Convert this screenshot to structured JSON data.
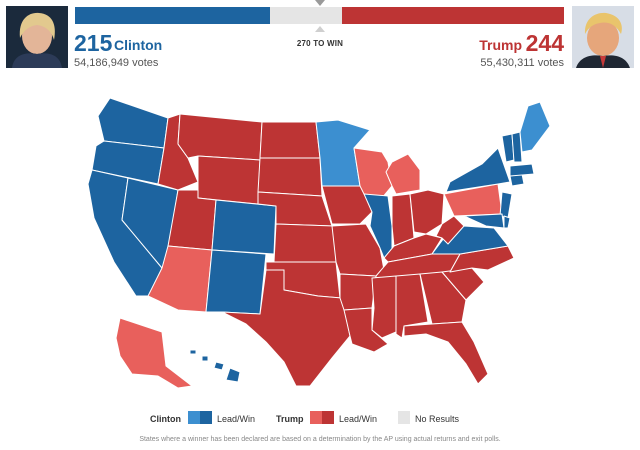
{
  "header": {
    "threshold_label": "270 TO WIN",
    "clinton": {
      "ev": "215",
      "name": "Clinton",
      "votes": "54,186,949 votes",
      "photo_icon": "candidate-photo-clinton"
    },
    "trump": {
      "ev": "244",
      "name": "Trump",
      "votes": "55,430,311 votes",
      "photo_icon": "candidate-photo-trump"
    },
    "bar": {
      "total": 538,
      "clinton_ev": 215,
      "trump_ev": 244
    }
  },
  "colors": {
    "dem_win": "#1d64a0",
    "dem_lead": "#3c8fd0",
    "rep_win": "#bd3434",
    "rep_lead": "#e8605c",
    "no_result": "#e5e5e5",
    "state_border": "#ffffff"
  },
  "legend": {
    "clinton_label": "Clinton",
    "clinton_status": "Lead/Win",
    "trump_label": "Trump",
    "trump_status": "Lead/Win",
    "no_results": "No Results"
  },
  "footnote": "States where a winner has been declared are based on a determination by the AP using actual returns and exit polls."
}
